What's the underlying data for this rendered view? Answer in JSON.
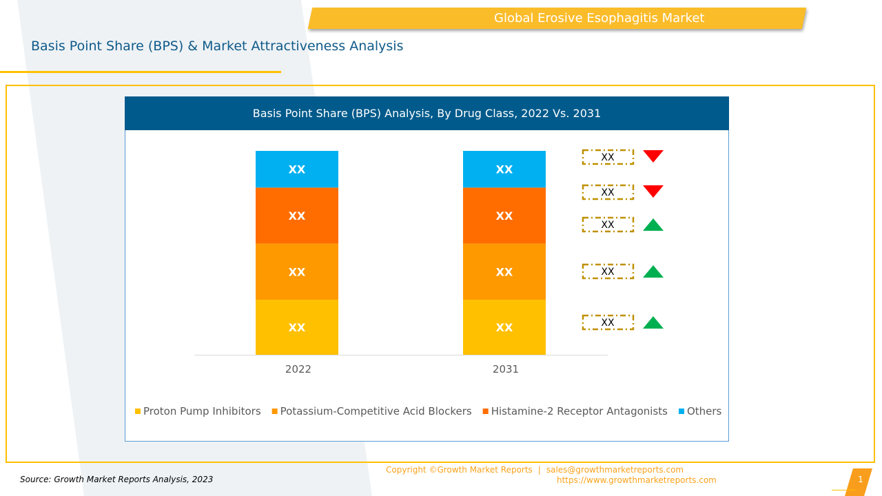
{
  "header": {
    "title": "Global Erosive Esophagitis Market",
    "subtitle": "Basis Point Share (BPS) & Market Attractiveness Analysis"
  },
  "chart_data": {
    "type": "bar",
    "stacked": true,
    "title": "Basis Point Share (BPS) Analysis, By Drug Class, 2022 Vs. 2031",
    "categories": [
      "2022",
      "2031"
    ],
    "series": [
      {
        "name": "Proton Pump Inhibitors",
        "values": [
          27,
          27
        ],
        "label": "XX",
        "color": "#FFC000"
      },
      {
        "name": "Potassium-Competitive Acid Blockers",
        "values": [
          27.5,
          27.5
        ],
        "label": "XX",
        "color": "#FF9900"
      },
      {
        "name": "Histamine-2 Receptor Antagonists",
        "values": [
          27.5,
          27.5
        ],
        "label": "XX",
        "color": "#FF6D00"
      },
      {
        "name": "Others",
        "values": [
          18,
          18
        ],
        "label": "XX",
        "color": "#00B0F0"
      }
    ],
    "ylim": [
      0,
      100
    ],
    "grid": false,
    "legend": "bottom",
    "bps_indicators": [
      {
        "series": "Others",
        "label": "XX",
        "direction": "down"
      },
      {
        "series": "Histamine-2 Receptor Antagonists",
        "label": "XX",
        "direction": "down"
      },
      {
        "series": "Potassium-Competitive Acid Blockers",
        "label": "XX",
        "direction": "up"
      },
      {
        "series": "Proton Pump Inhibitors (upper)",
        "label": "XX",
        "direction": "up"
      },
      {
        "series": "Proton Pump Inhibitors",
        "label": "XX",
        "direction": "up"
      }
    ],
    "colors": {
      "up": "#00B050",
      "down": "#FF0000",
      "box": "#BF9000"
    }
  },
  "footer": {
    "source": "Source: Growth Market Reports Analysis, 2023",
    "copyright": "Copyright ©Growth Market Reports",
    "email": "sales@growthmarketreports.com",
    "separator": "|",
    "url": "https://www.growthmarketreports.com",
    "page": "1"
  }
}
